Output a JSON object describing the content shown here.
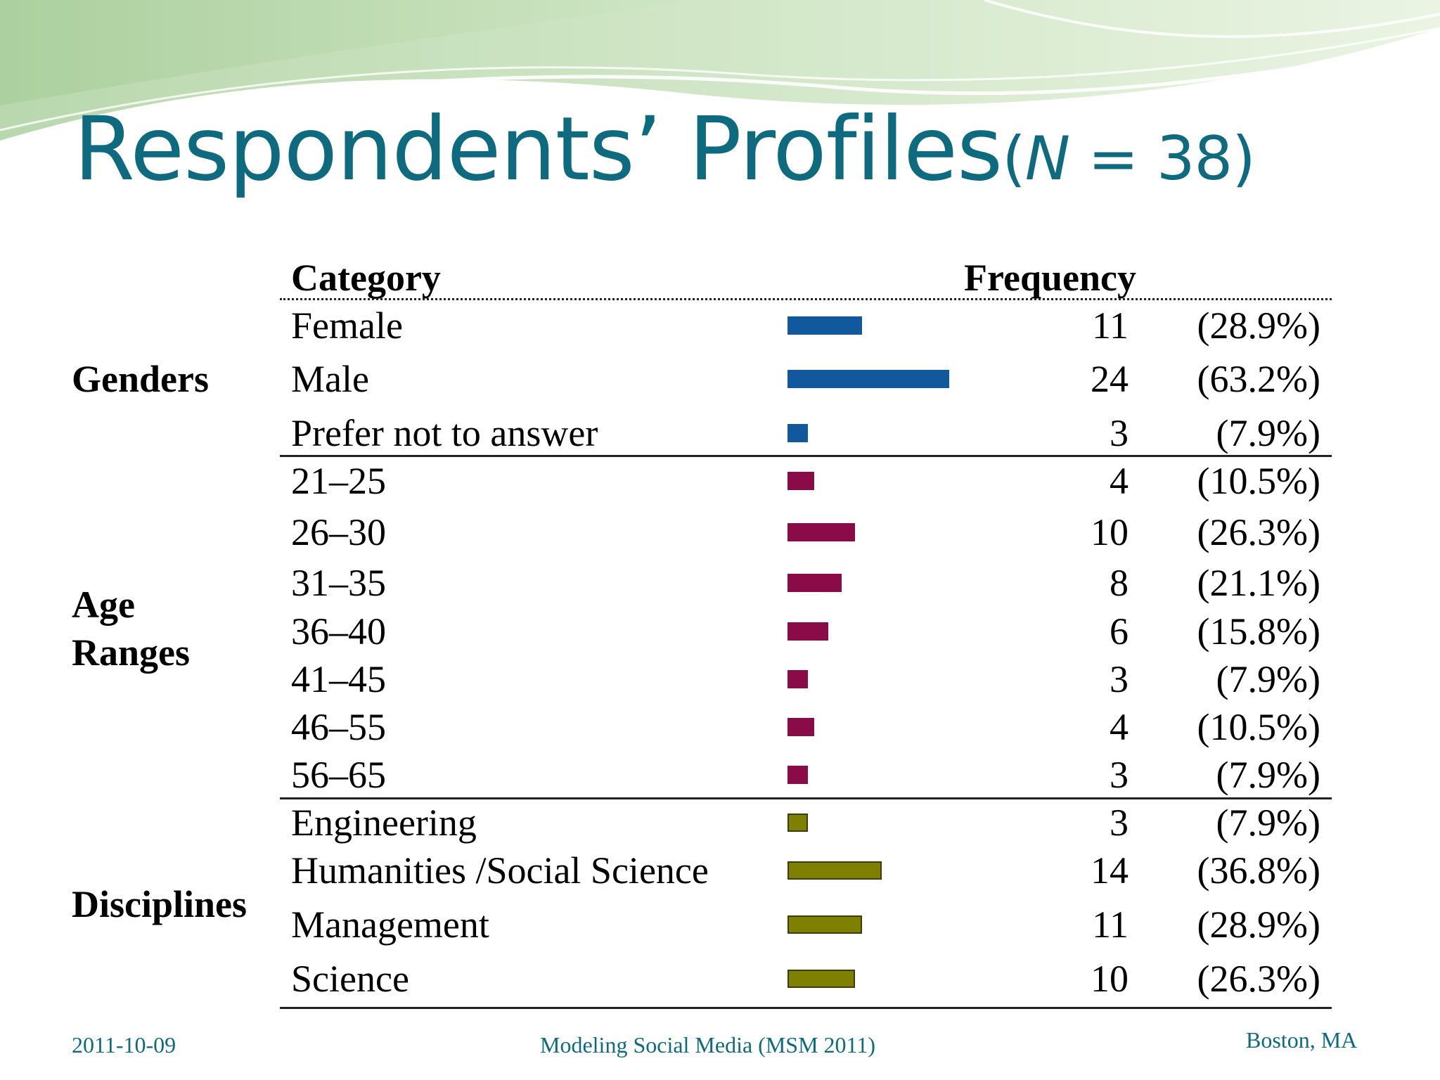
{
  "title": {
    "main": "Respondents’ Profiles",
    "open": "(",
    "n_symbol": "N",
    "n_rest": " = 38)"
  },
  "headers": {
    "category": "Category",
    "frequency": "Frequency"
  },
  "groups": [
    {
      "label_lines": [
        "Genders"
      ],
      "color": "#12589c",
      "rows": [
        {
          "category": "Female",
          "count": "11",
          "percent": "(28.9%)",
          "value": 11
        },
        {
          "category": "Male",
          "count": "24",
          "percent": "(63.2%)",
          "value": 24
        },
        {
          "category": "Prefer not to answer",
          "count": "3",
          "percent": "(7.9%)",
          "value": 3
        }
      ]
    },
    {
      "label_lines": [
        "Age",
        "Ranges"
      ],
      "color": "#8a0b47",
      "rows": [
        {
          "category": "21–25",
          "count": "4",
          "percent": "(10.5%)",
          "value": 4
        },
        {
          "category": "26–30",
          "count": "10",
          "percent": "(26.3%)",
          "value": 10
        },
        {
          "category": "31–35",
          "count": "8",
          "percent": "(21.1%)",
          "value": 8
        },
        {
          "category": "36–40",
          "count": "6",
          "percent": "(15.8%)",
          "value": 6
        },
        {
          "category": "41–45",
          "count": "3",
          "percent": "(7.9%)",
          "value": 3
        },
        {
          "category": "46–55",
          "count": "4",
          "percent": "(10.5%)",
          "value": 4
        },
        {
          "category": "56–65",
          "count": "3",
          "percent": "(7.9%)",
          "value": 3
        }
      ]
    },
    {
      "label_lines": [
        "Disciplines"
      ],
      "color": "#7f8000",
      "border_color": "#3c3c00",
      "rows": [
        {
          "category": "Engineering",
          "count": "3",
          "percent": "(7.9%)",
          "value": 3
        },
        {
          "category": "Humanities /Social Science",
          "count": "14",
          "percent": "(36.8%)",
          "value": 14
        },
        {
          "category": "Management",
          "count": "11",
          "percent": "(28.9%)",
          "value": 11
        },
        {
          "category": "Science",
          "count": "10",
          "percent": "(26.3%)",
          "value": 10
        }
      ]
    }
  ],
  "footer": {
    "date": "2011-10-09",
    "event": "Modeling Social Media (MSM 2011)",
    "location": "Boston, MA"
  },
  "colors": {
    "title": "#0e6a7e",
    "gender_bar": "#12589c",
    "age_bar": "#8a0b47",
    "discipline_bar": "#7f8000"
  }
}
